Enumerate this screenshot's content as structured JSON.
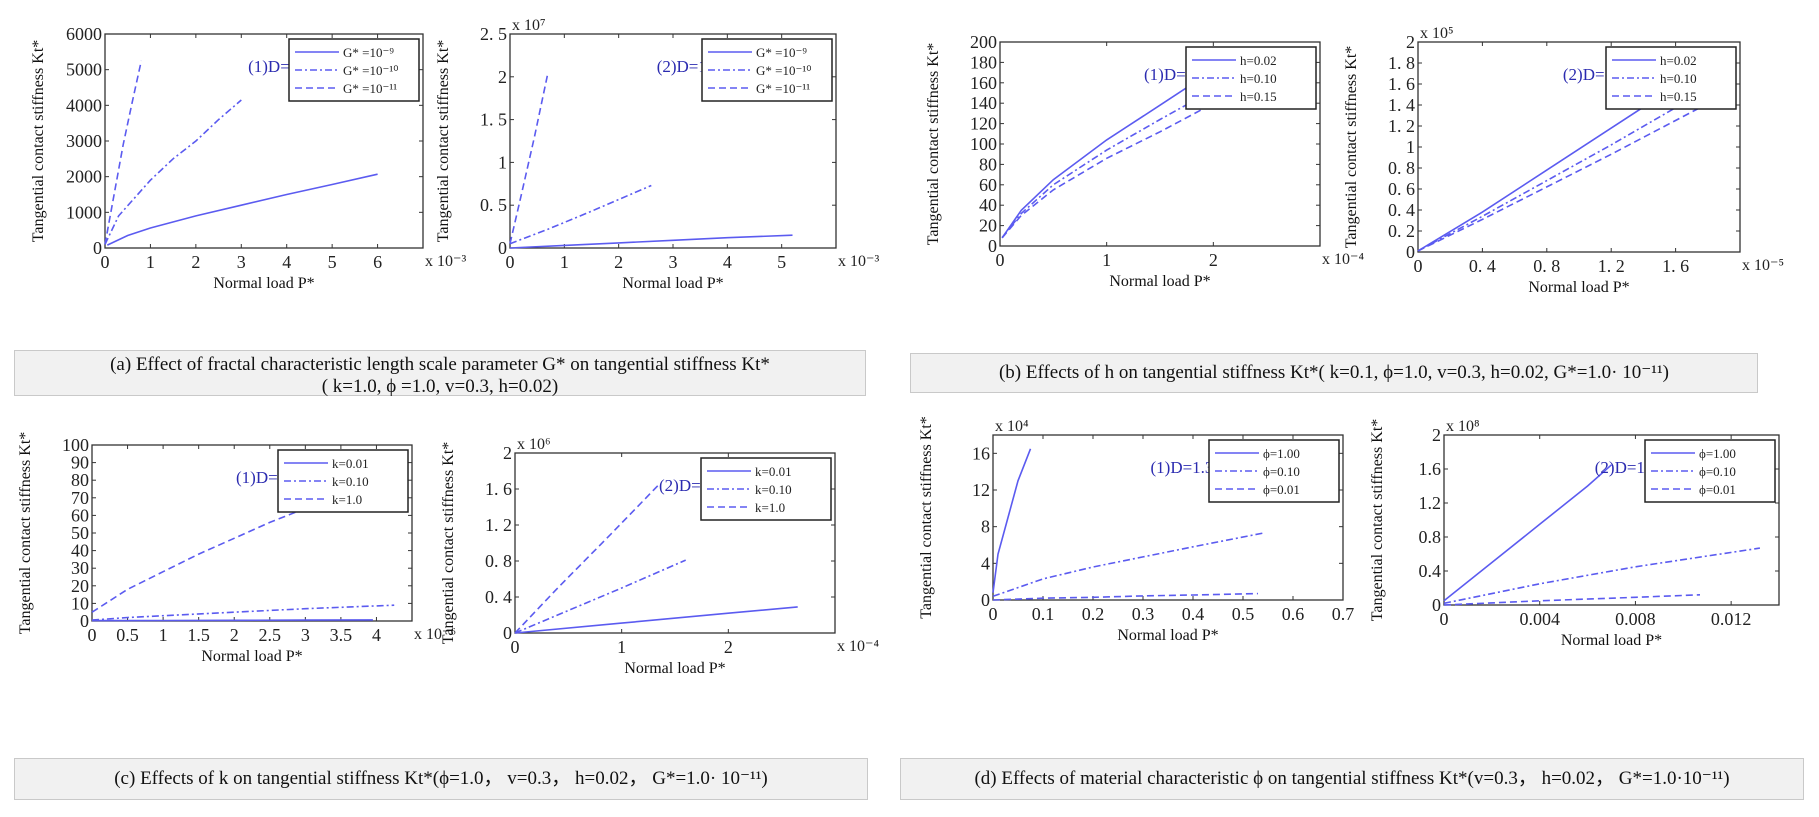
{
  "figure": {
    "line_color": "#5b5bf0",
    "annotation_color": "#2b2bb0",
    "captions": [
      {
        "id": "a",
        "line1": "(a) Effect of fractal characteristic length scale parameter G* on tangential stiffness Kt*",
        "line2": "( k=1.0,  ϕ =1.0, v=0.3, h=0.02)"
      },
      {
        "id": "b",
        "line1": "(b) Effects of h on tangential stiffness Kt*( k=0.1, ϕ=1.0, v=0.3, h=0.02, G*=1.0· 10⁻¹¹)"
      },
      {
        "id": "c",
        "line1": "(c) Effects of k on tangential stiffness Kt*(ϕ=1.0， v=0.3， h=0.02， G*=1.0· 10⁻¹¹)"
      },
      {
        "id": "d",
        "line1": "(d) Effects of material characteristic ϕ on tangential stiffness Kt*(v=0.3， h=0.02， G*=1.0·10⁻¹¹)"
      }
    ]
  },
  "chart_data": [
    {
      "id": "a1",
      "type": "line",
      "annotation": "(1)D=1.6",
      "xlabel": "Normal load P*",
      "ylabel": "Tangential contact stiffness Kt*",
      "x_multiplier": "x 10⁻³",
      "y_multiplier": "",
      "xlim": [
        0,
        7
      ],
      "ylim": [
        0,
        6000
      ],
      "xticks": [
        0,
        1,
        2,
        3,
        4,
        5,
        6
      ],
      "xtick_labels": [
        "0",
        "1",
        "2",
        "3",
        "4",
        "5",
        "6"
      ],
      "yticks": [
        0,
        1000,
        2000,
        3000,
        4000,
        5000,
        6000
      ],
      "ytick_labels": [
        "0",
        "1000",
        "2000",
        "3000",
        "4000",
        "5000",
        "6000"
      ],
      "legend_position": "top-right",
      "series": [
        {
          "name": "G* =10⁻⁹",
          "style": "solid",
          "x": [
            0.05,
            0.5,
            1,
            2,
            3,
            4,
            5,
            6
          ],
          "y": [
            80,
            350,
            560,
            900,
            1200,
            1500,
            1780,
            2070
          ]
        },
        {
          "name": "G* =10⁻¹⁰",
          "style": "dashdot",
          "x": [
            0,
            0.3,
            1,
            1.5,
            2,
            2.5,
            3
          ],
          "y": [
            100,
            900,
            1900,
            2500,
            3000,
            3600,
            4150
          ]
        },
        {
          "name": "G* =10⁻¹¹",
          "style": "dashed",
          "x": [
            0,
            0.2,
            0.4,
            0.6,
            0.8
          ],
          "y": [
            100,
            1500,
            2900,
            4100,
            5250
          ]
        }
      ]
    },
    {
      "id": "a2",
      "type": "line",
      "annotation": "(2)D=1.7",
      "xlabel": "Normal load P*",
      "ylabel": "Tangential contact stiffness Kt*",
      "x_multiplier": "x 10⁻³",
      "y_multiplier": "x 10⁷",
      "xlim": [
        0,
        6
      ],
      "ylim": [
        0,
        2.5
      ],
      "xticks": [
        0,
        1,
        2,
        3,
        4,
        5
      ],
      "xtick_labels": [
        "0",
        "1",
        "2",
        "3",
        "4",
        "5"
      ],
      "yticks": [
        0,
        0.5,
        1,
        1.5,
        2,
        2.5
      ],
      "ytick_labels": [
        "0",
        "0. 5",
        "1",
        "1. 5",
        "2",
        "2. 5"
      ],
      "legend_position": "top-right",
      "series": [
        {
          "name": "G* =10⁻⁹",
          "style": "solid",
          "x": [
            0,
            1,
            2,
            3,
            4,
            5.2
          ],
          "y": [
            0,
            0.03,
            0.06,
            0.09,
            0.12,
            0.15
          ]
        },
        {
          "name": "G* =10⁻¹⁰",
          "style": "dashdot",
          "x": [
            0,
            0.7,
            1.5,
            2.6
          ],
          "y": [
            0.05,
            0.22,
            0.43,
            0.73
          ]
        },
        {
          "name": "G* =10⁻¹¹",
          "style": "dashed",
          "x": [
            0,
            0.2,
            0.45,
            0.7
          ],
          "y": [
            0.05,
            0.6,
            1.3,
            2.05
          ]
        }
      ]
    },
    {
      "id": "b1",
      "type": "line",
      "annotation": "(1)D=1.3",
      "xlabel": "Normal load P*",
      "ylabel": "Tangential contact stiffness Kt*",
      "x_multiplier": "x 10⁻⁴",
      "y_multiplier": "",
      "xlim": [
        0,
        3
      ],
      "ylim": [
        0,
        200
      ],
      "xticks": [
        0,
        1,
        2
      ],
      "xtick_labels": [
        "0",
        "1",
        "2"
      ],
      "yticks": [
        0,
        20,
        40,
        60,
        80,
        100,
        120,
        140,
        160,
        180,
        200
      ],
      "ytick_labels": [
        "0",
        "20",
        "40",
        "60",
        "80",
        "100",
        "120",
        "140",
        "160",
        "180",
        "200"
      ],
      "legend_position": "top-right",
      "series": [
        {
          "name": "h=0.02",
          "style": "solid",
          "x": [
            0.02,
            0.2,
            0.5,
            1,
            1.5,
            1.82
          ],
          "y": [
            8,
            35,
            65,
            104,
            138,
            160
          ]
        },
        {
          "name": "h=0.10",
          "style": "dashdot",
          "x": [
            0.02,
            0.2,
            0.5,
            1,
            1.5,
            2.12
          ],
          "y": [
            8,
            32,
            60,
            94,
            124,
            160
          ]
        },
        {
          "name": "h=0.15",
          "style": "dashed",
          "x": [
            0.02,
            0.2,
            0.5,
            1,
            1.5,
            2.15
          ],
          "y": [
            8,
            30,
            55,
            86,
            112,
            148
          ]
        }
      ]
    },
    {
      "id": "b2",
      "type": "line",
      "annotation": "(2)D=1.9",
      "xlabel": "Normal load P*",
      "ylabel": "Tangential contact stiffness Kt*",
      "x_multiplier": "x 10⁻⁵",
      "y_multiplier": "x 10⁵",
      "xlim": [
        0,
        2
      ],
      "ylim": [
        0,
        2
      ],
      "xticks": [
        0,
        0.4,
        0.8,
        1.2,
        1.6
      ],
      "xtick_labels": [
        "0",
        "0. 4",
        "0. 8",
        "1. 2",
        "1. 6"
      ],
      "yticks": [
        0,
        0.2,
        0.4,
        0.6,
        0.8,
        1,
        1.2,
        1.4,
        1.6,
        1.8,
        2
      ],
      "ytick_labels": [
        "0",
        "0. 2",
        "0. 4",
        "0. 6",
        "0. 8",
        "1",
        "1. 2",
        "1. 4",
        "1. 6",
        "1. 8",
        "2"
      ],
      "legend_position": "top-right",
      "series": [
        {
          "name": "h=0.02",
          "style": "solid",
          "x": [
            0,
            0.4,
            0.8,
            1.2,
            1.62
          ],
          "y": [
            0.01,
            0.38,
            0.78,
            1.18,
            1.6
          ]
        },
        {
          "name": "h=0.10",
          "style": "dashdot",
          "x": [
            0,
            0.4,
            0.8,
            1.2,
            1.82
          ],
          "y": [
            0.01,
            0.34,
            0.68,
            1.02,
            1.57
          ]
        },
        {
          "name": "h=0.15",
          "style": "dashed",
          "x": [
            0,
            0.4,
            0.8,
            1.2,
            1.92
          ],
          "y": [
            0.01,
            0.31,
            0.62,
            0.93,
            1.51
          ]
        }
      ]
    },
    {
      "id": "c1",
      "type": "line",
      "annotation": "(1)D=1.3",
      "xlabel": "Normal load P*",
      "ylabel": "Tangential contact stiffness Kt*",
      "x_multiplier": "x 10⁻⁶",
      "y_multiplier": "",
      "xlim": [
        0,
        4.5
      ],
      "ylim": [
        0,
        100
      ],
      "xticks": [
        0,
        0.5,
        1,
        1.5,
        2,
        2.5,
        3,
        3.5,
        4
      ],
      "xtick_labels": [
        "0",
        "0.5",
        "1",
        "1.5",
        "2",
        "2.5",
        "3",
        "3.5",
        "4"
      ],
      "yticks": [
        0,
        10,
        20,
        30,
        40,
        50,
        60,
        70,
        80,
        90,
        100
      ],
      "ytick_labels": [
        "0",
        "10",
        "20",
        "30",
        "40",
        "50",
        "60",
        "70",
        "80",
        "90",
        "100"
      ],
      "legend_position": "top-right",
      "series": [
        {
          "name": "k=0.01",
          "style": "solid",
          "x": [
            0,
            1,
            2,
            3,
            3.95
          ],
          "y": [
            0.2,
            0.3,
            0.4,
            0.5,
            0.6
          ]
        },
        {
          "name": "k=0.10",
          "style": "dashdot",
          "x": [
            0,
            0.5,
            1,
            2,
            3,
            4.25
          ],
          "y": [
            0.5,
            2,
            3,
            5,
            7,
            9
          ]
        },
        {
          "name": "k=1.0",
          "style": "dashed",
          "x": [
            0,
            0.5,
            1,
            1.5,
            2,
            2.5,
            3,
            3.5,
            3.8
          ],
          "y": [
            5,
            18,
            28,
            38,
            47,
            56,
            64,
            72,
            80
          ]
        }
      ]
    },
    {
      "id": "c2",
      "type": "line",
      "annotation": "(2)D=1.6",
      "xlabel": "Normal load P*",
      "ylabel": "Tangential contact stiffness Kt*",
      "x_multiplier": "x 10⁻⁴",
      "y_multiplier": "x 10⁶",
      "xlim": [
        0,
        3
      ],
      "ylim": [
        0,
        2
      ],
      "xticks": [
        0,
        1,
        2
      ],
      "xtick_labels": [
        "0",
        "1",
        "2"
      ],
      "yticks": [
        0,
        0.4,
        0.8,
        1.2,
        1.6,
        2
      ],
      "ytick_labels": [
        "0",
        "0. 4",
        "0. 8",
        "1. 2",
        "1. 6",
        "2"
      ],
      "legend_position": "top-right",
      "series": [
        {
          "name": "k=0.01",
          "style": "solid",
          "x": [
            0,
            1,
            2,
            2.65
          ],
          "y": [
            0,
            0.11,
            0.22,
            0.29
          ]
        },
        {
          "name": "k=0.10",
          "style": "dashdot",
          "x": [
            0,
            0.5,
            1,
            1.6
          ],
          "y": [
            0,
            0.25,
            0.5,
            0.81
          ]
        },
        {
          "name": "k=1.0",
          "style": "dashed",
          "x": [
            0,
            0.4,
            0.9,
            1.35
          ],
          "y": [
            0,
            0.5,
            1.1,
            1.65
          ]
        }
      ]
    },
    {
      "id": "d1",
      "type": "line",
      "annotation": "(1)D=1.3",
      "xlabel": "Normal load P*",
      "ylabel": "Tangential contact stiffness Kt*",
      "x_multiplier": "",
      "y_multiplier": "x 10⁴",
      "xlim": [
        0,
        0.7
      ],
      "ylim": [
        0,
        18
      ],
      "xticks": [
        0,
        0.1,
        0.2,
        0.3,
        0.4,
        0.5,
        0.6,
        0.7
      ],
      "xtick_labels": [
        "0",
        "0.1",
        "0.2",
        "0.3",
        "0.4",
        "0.5",
        "0.6",
        "0.7"
      ],
      "yticks": [
        0,
        4,
        8,
        12,
        16
      ],
      "ytick_labels": [
        "0",
        "4",
        "8",
        "12",
        "16"
      ],
      "legend_position": "top-right",
      "series": [
        {
          "name": "ϕ=1.00",
          "style": "solid",
          "x": [
            0,
            0.01,
            0.03,
            0.05,
            0.075
          ],
          "y": [
            0.8,
            5,
            9,
            13,
            16.5
          ]
        },
        {
          "name": "ϕ=0.10",
          "style": "dashdot",
          "x": [
            0,
            0.1,
            0.2,
            0.3,
            0.4,
            0.54
          ],
          "y": [
            0.4,
            2.3,
            3.6,
            4.7,
            5.8,
            7.3
          ]
        },
        {
          "name": "ϕ=0.01",
          "style": "dashed",
          "x": [
            0,
            0.1,
            0.2,
            0.3,
            0.4,
            0.53
          ],
          "y": [
            0,
            0.2,
            0.3,
            0.45,
            0.55,
            0.7
          ]
        }
      ]
    },
    {
      "id": "d2",
      "type": "line",
      "annotation": "(2)D=1.6",
      "xlabel": "Normal load P*",
      "ylabel": "Tangential contact stiffness Kt*",
      "x_multiplier": "",
      "y_multiplier": "x 10⁸",
      "xlim": [
        0,
        0.014
      ],
      "ylim": [
        0,
        2
      ],
      "xticks": [
        0,
        0.004,
        0.008,
        0.012
      ],
      "xtick_labels": [
        "0",
        "0.004",
        "0.008",
        "0.012"
      ],
      "yticks": [
        0,
        0.4,
        0.8,
        1.2,
        1.6,
        2
      ],
      "ytick_labels": [
        "0",
        "0.4",
        "0.8",
        "1.2",
        "1.6",
        "2"
      ],
      "legend_position": "top-right",
      "series": [
        {
          "name": "ϕ=1.00",
          "style": "solid",
          "x": [
            0,
            0.002,
            0.004,
            0.006,
            0.007
          ],
          "y": [
            0.05,
            0.5,
            0.95,
            1.4,
            1.65
          ]
        },
        {
          "name": "ϕ=0.10",
          "style": "dashdot",
          "x": [
            0,
            0.004,
            0.008,
            0.0132
          ],
          "y": [
            0.02,
            0.25,
            0.45,
            0.67
          ]
        },
        {
          "name": "ϕ=0.01",
          "style": "dashed",
          "x": [
            0,
            0.004,
            0.008,
            0.0107
          ],
          "y": [
            0,
            0.05,
            0.09,
            0.12
          ]
        }
      ]
    }
  ]
}
